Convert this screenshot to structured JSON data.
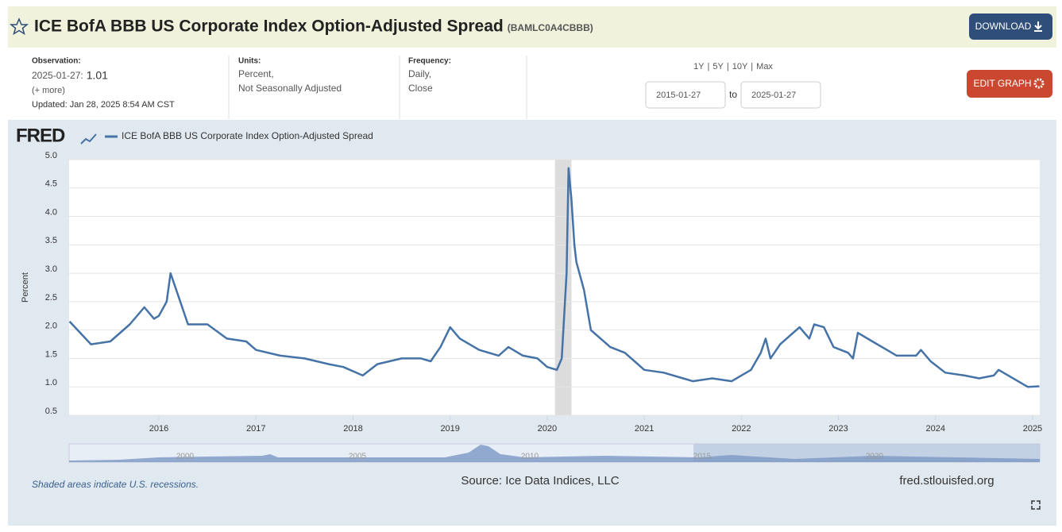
{
  "header": {
    "title": "ICE BofA BBB US Corporate Index Option-Adjusted Spread",
    "series_id": "(BAMLC0A4CBBB)",
    "download": "DOWNLOAD"
  },
  "meta": {
    "observation": {
      "label": "Observation:",
      "date": "2025-01-27:",
      "value": "1.01",
      "more": "(+ more)",
      "updated": "Updated: Jan 28, 2025 8:54 AM CST"
    },
    "units": {
      "label": "Units:",
      "lines": [
        "Percent,",
        "Not Seasonally Adjusted"
      ]
    },
    "frequency": {
      "label": "Frequency:",
      "lines": [
        "Daily,",
        "Close"
      ]
    }
  },
  "controls": {
    "ranges": [
      "1Y",
      "5Y",
      "10Y",
      "Max"
    ],
    "separator": "|",
    "start": "2015-01-27",
    "to": "to",
    "end": "2025-01-27",
    "edit": "EDIT GRAPH"
  },
  "chart_data": {
    "type": "line",
    "logo": "FRED",
    "ylabel": "Percent",
    "x": [
      2015.08,
      2015.3,
      2015.5,
      2015.7,
      2015.85,
      2015.95,
      2016.0,
      2016.08,
      2016.12,
      2016.2,
      2016.3,
      2016.5,
      2016.7,
      2016.9,
      2017.0,
      2017.25,
      2017.5,
      2017.75,
      2017.9,
      2018.1,
      2018.25,
      2018.5,
      2018.7,
      2018.8,
      2018.9,
      2019.0,
      2019.1,
      2019.3,
      2019.5,
      2019.6,
      2019.75,
      2019.9,
      2020.0,
      2020.1,
      2020.15,
      2020.2,
      2020.22,
      2020.25,
      2020.28,
      2020.3,
      2020.38,
      2020.45,
      2020.55,
      2020.65,
      2020.8,
      2020.9,
      2021.0,
      2021.2,
      2021.4,
      2021.5,
      2021.7,
      2021.9,
      2022.0,
      2022.1,
      2022.2,
      2022.25,
      2022.3,
      2022.4,
      2022.5,
      2022.6,
      2022.7,
      2022.75,
      2022.85,
      2022.95,
      2023.1,
      2023.15,
      2023.2,
      2023.35,
      2023.5,
      2023.6,
      2023.8,
      2023.85,
      2023.95,
      2024.1,
      2024.3,
      2024.45,
      2024.6,
      2024.65,
      2024.75,
      2024.85,
      2024.95,
      2025.07
    ],
    "series": [
      {
        "name": "ICE BofA BBB US Corporate Index Option-Adjusted Spread",
        "color": "#4572a7",
        "values": [
          2.15,
          1.75,
          1.8,
          2.1,
          2.4,
          2.2,
          2.25,
          2.5,
          3.0,
          2.6,
          2.1,
          2.1,
          1.85,
          1.8,
          1.65,
          1.55,
          1.5,
          1.4,
          1.35,
          1.2,
          1.4,
          1.5,
          1.5,
          1.45,
          1.7,
          2.05,
          1.85,
          1.65,
          1.55,
          1.7,
          1.55,
          1.5,
          1.35,
          1.3,
          1.5,
          3.0,
          4.85,
          4.3,
          3.5,
          3.2,
          2.7,
          2.0,
          1.85,
          1.7,
          1.6,
          1.45,
          1.3,
          1.25,
          1.15,
          1.1,
          1.15,
          1.1,
          1.2,
          1.3,
          1.6,
          1.85,
          1.5,
          1.75,
          1.9,
          2.05,
          1.85,
          2.1,
          2.05,
          1.7,
          1.6,
          1.5,
          1.95,
          1.8,
          1.65,
          1.55,
          1.55,
          1.65,
          1.45,
          1.25,
          1.2,
          1.15,
          1.2,
          1.3,
          1.2,
          1.1,
          1.0,
          1.01
        ]
      }
    ],
    "xlim": [
      2015.075,
      2025.074
    ],
    "xticks": [
      2016,
      2017,
      2018,
      2019,
      2020,
      2021,
      2022,
      2023,
      2024,
      2025
    ],
    "ylim": [
      0.5,
      5.0
    ],
    "yticks": [
      0.5,
      {
        "value": 1,
        "label": "1.0"
      },
      1.5,
      {
        "value": 2,
        "label": "2.0"
      },
      2.5,
      {
        "value": 3,
        "label": "3.0"
      },
      3.5,
      {
        "value": 4,
        "label": "4.0"
      },
      4.5,
      {
        "value": 5,
        "label": "5.0"
      }
    ],
    "grid": true,
    "recessions": [
      {
        "start": 2020.08,
        "end": 2020.25
      }
    ],
    "navigator": [
      "2000",
      "2005",
      "2010",
      "2015",
      "2020"
    ],
    "recession_note": "Shaded areas indicate U.S. recessions.",
    "source": "Source: Ice Data Indices, LLC",
    "site": "fred.stlouisfed.org"
  }
}
